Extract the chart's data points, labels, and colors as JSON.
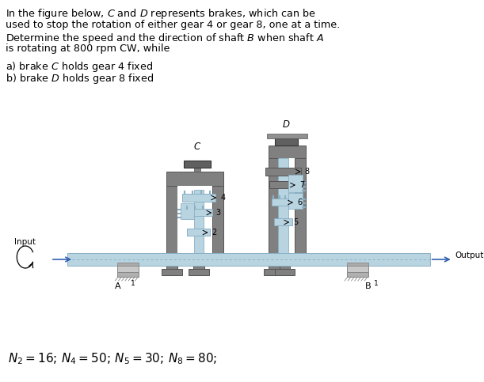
{
  "title_lines": [
    "In the figure below, $C$ and $D$ represents brakes, which can be",
    "used to stop the rotation of either gear 4 or gear 8, one at a time.",
    "Determine the speed and the direction of shaft $B$ when shaft $A$",
    "is rotating at 800 rpm CW, while"
  ],
  "sub_lines": [
    "a) brake $C$ holds gear 4 fixed",
    "b) brake $D$ holds gear 8 fixed"
  ],
  "formula": "$N_2 = 16;\\, N_4 = 50;\\, N_5 = 30;\\, N_8 = 80;$",
  "bg": "#ffffff",
  "shaft_blue": "#b8d4e0",
  "shaft_blue_dark": "#8ab0c4",
  "dark_gray": "#808080",
  "mid_gray": "#a0a0a0",
  "brake_dark": "#606060",
  "text_col": "#000000",
  "label_col": "#333333"
}
